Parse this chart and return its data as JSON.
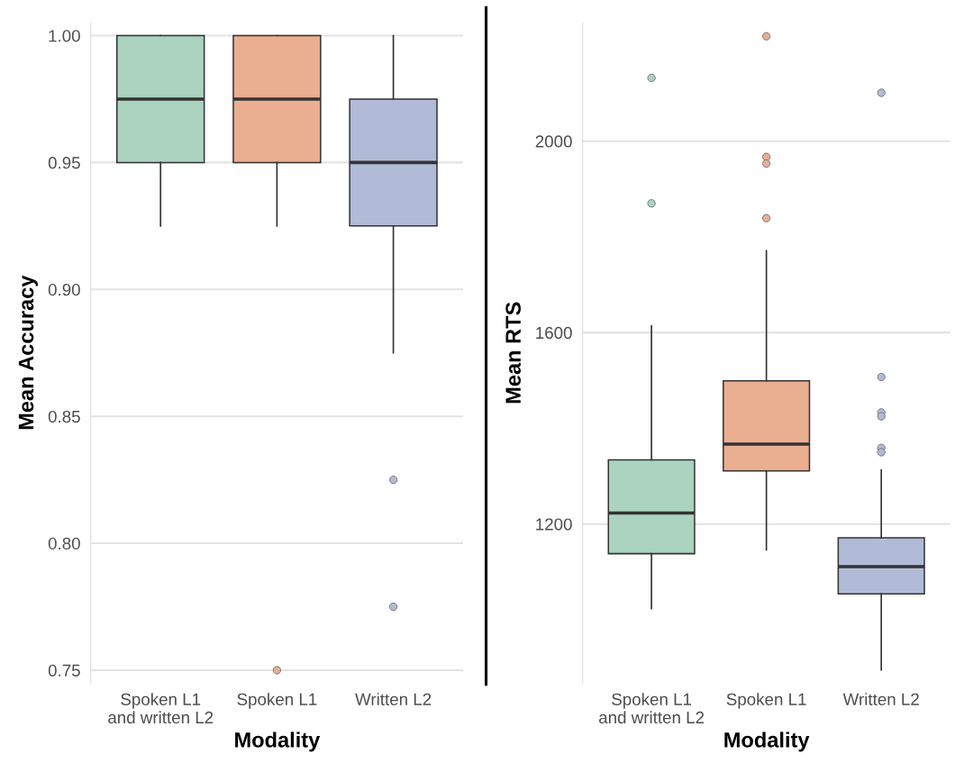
{
  "chart_data": [
    {
      "type": "box",
      "xlabel": "Modality",
      "ylabel": "Mean Accuracy",
      "categories": [
        "Spoken L1\nand written L2",
        "Spoken L1",
        "Written L2"
      ],
      "colors": [
        "#abd3c0",
        "#eaae91",
        "#b1bbd8"
      ],
      "boxes": [
        {
          "low": 0.925,
          "q1": 0.95,
          "median": 0.975,
          "q3": 1.0,
          "high": 1.0
        },
        {
          "low": 0.925,
          "q1": 0.95,
          "median": 0.975,
          "q3": 1.0,
          "high": 1.0,
          "outliers": [
            0.75
          ]
        },
        {
          "low": 0.875,
          "q1": 0.925,
          "median": 0.95,
          "q3": 0.975,
          "high": 1.0,
          "outliers": [
            0.825,
            0.775
          ]
        }
      ],
      "ylim": [
        0.745,
        1.005
      ],
      "yticks": [
        {
          "value": 0.75,
          "label": "0.75"
        },
        {
          "value": 0.8,
          "label": "0.80"
        },
        {
          "value": 0.85,
          "label": "0.85"
        },
        {
          "value": 0.9,
          "label": "0.90"
        },
        {
          "value": 0.95,
          "label": "0.95"
        },
        {
          "value": 1.0,
          "label": "1.00"
        }
      ],
      "grid": "y"
    },
    {
      "type": "box",
      "xlabel": "Modality",
      "ylabel": "Mean RTS",
      "categories": [
        "Spoken L1\nand written L2",
        "Spoken L1",
        "Written L2"
      ],
      "colors": [
        "#abd3c0",
        "#eaae91",
        "#b1bbd8"
      ],
      "boxes": [
        {
          "low": 1023,
          "q1": 1138,
          "median": 1223,
          "q3": 1334,
          "high": 1614,
          "outliers": [
            2132,
            1870
          ]
        },
        {
          "low": 1146,
          "q1": 1311,
          "median": 1367,
          "q3": 1499,
          "high": 1771,
          "outliers": [
            2219,
            1967,
            1953,
            1839
          ]
        },
        {
          "low": 895,
          "q1": 1054,
          "median": 1111,
          "q3": 1171,
          "high": 1313,
          "outliers": [
            2101,
            1507,
            1433,
            1425,
            1359,
            1350
          ]
        }
      ],
      "ylim": [
        868,
        2247
      ],
      "yticks": [
        1200,
        1600,
        2000
      ],
      "grid": "y"
    }
  ]
}
